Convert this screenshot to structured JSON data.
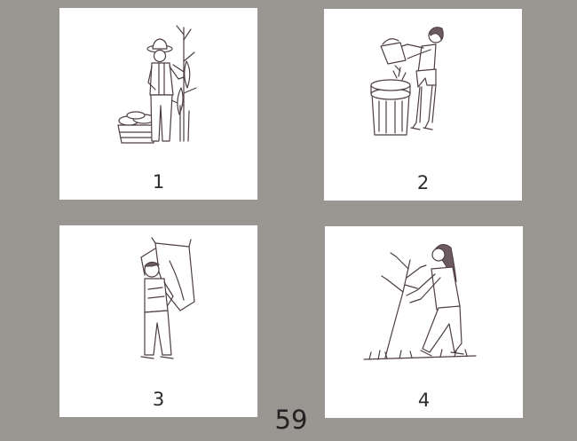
{
  "cards": [
    {
      "number": "1",
      "icon": "farmer-harvesting-corn-icon"
    },
    {
      "number": "2",
      "icon": "girl-emptying-bin-icon"
    },
    {
      "number": "3",
      "icon": "boy-carrying-sack-icon"
    },
    {
      "number": "4",
      "icon": "girl-planting-tree-icon"
    }
  ],
  "page_number": "59",
  "colors": {
    "background": "#9a9692",
    "card": "#ffffff",
    "ink": "#4d3e44"
  }
}
